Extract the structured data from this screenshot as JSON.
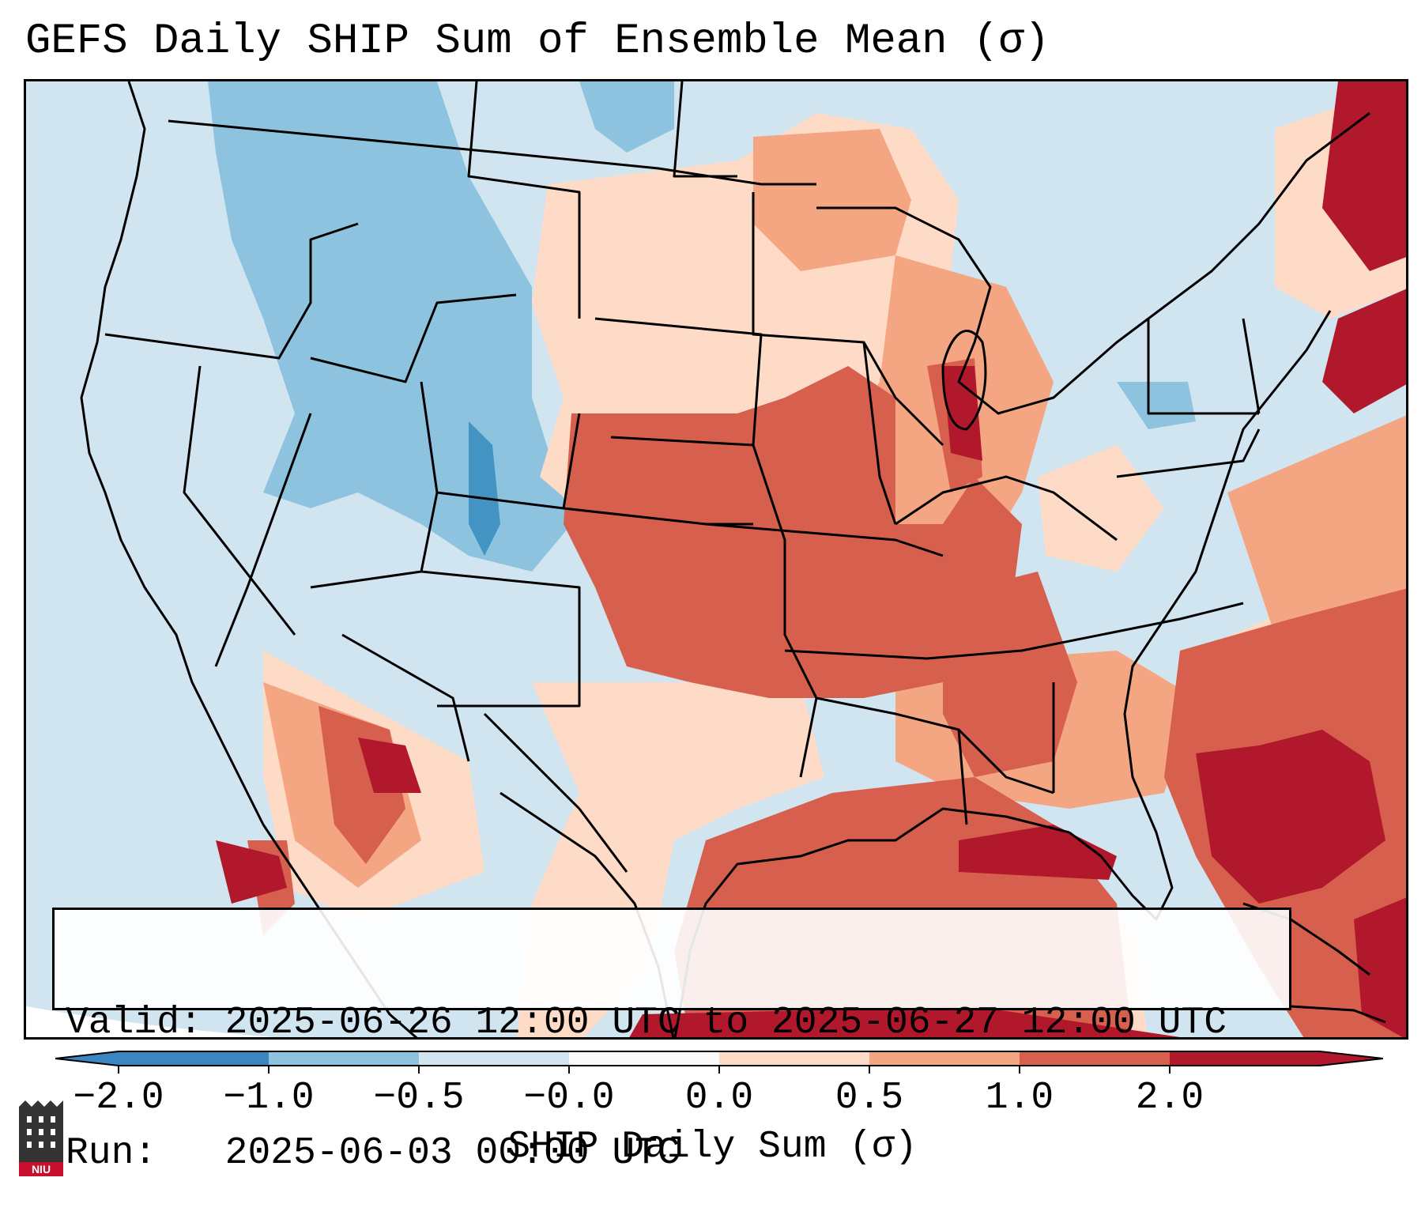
{
  "title": "GEFS Daily SHIP Sum of Ensemble Mean (σ)",
  "info": {
    "valid_label": "Valid:",
    "valid_value": "2025-06-26 12:00 UTC to 2025-06-27 12:00 UTC",
    "run_label": "Run:",
    "run_value": "2025-06-03 00:00 UTC"
  },
  "colorbar": {
    "label": "SHIP Daily Sum (σ)",
    "ticks": [
      "−2.0",
      "−1.0",
      "−0.5",
      "−0.0",
      "0.0",
      "0.5",
      "1.0",
      "2.0"
    ],
    "colors": [
      "#3a86c2",
      "#8ec3e0",
      "#d1e5f0",
      "#f9f9f9",
      "#fddbc7",
      "#f4a582",
      "#d6604d",
      "#b2182b"
    ]
  },
  "logo": {
    "text": "NIU",
    "icon": "university-building-icon"
  },
  "map_regions": {
    "west_us": "light-blue",
    "rockies": "blue",
    "central_us": "red",
    "southeast_us": "light-red",
    "gulf_of_mexico": "red",
    "atlantic_offshore": "dark-red",
    "northeast_us": "light-blue"
  }
}
